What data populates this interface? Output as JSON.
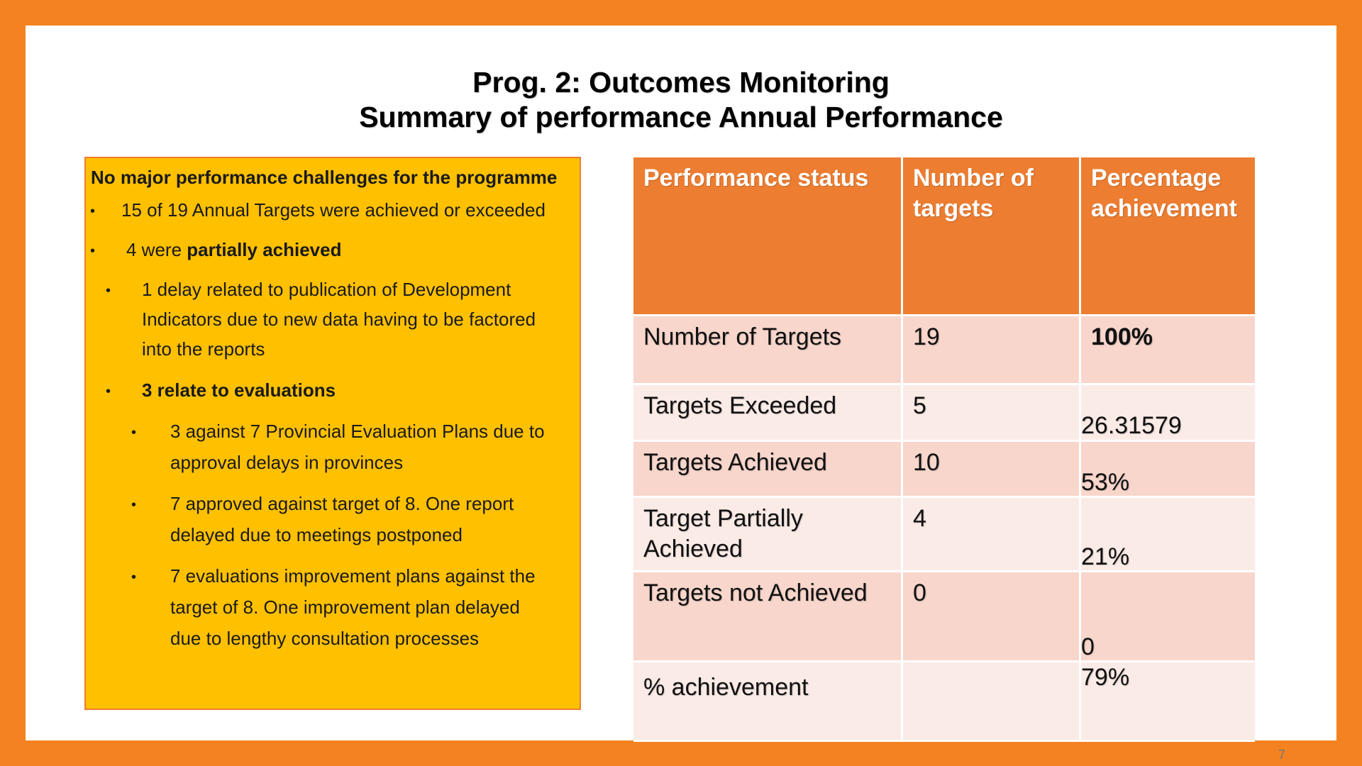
{
  "title": {
    "line1": "Prog. 2: Outcomes Monitoring",
    "line2": "Summary of performance Annual Performance"
  },
  "left_box": {
    "heading": "No major performance challenges for the programme",
    "bullets": [
      {
        "text": "15  of 19 Annual Targets were achieved or exceeded"
      },
      {
        "prefix": "4 were ",
        "bold": "partially achieved"
      },
      {
        "lines": [
          "1 delay related to publication of Development",
          "Indicators due to new data having to be factored",
          "into the reports"
        ]
      },
      {
        "bold": "3 relate to evaluations"
      },
      {
        "lines": [
          "3 against 7 Provincial Evaluation Plans due to",
          "approval delays in provinces"
        ]
      },
      {
        "lines": [
          "7 approved against target of 8. One report",
          "delayed due to meetings postponed"
        ]
      },
      {
        "lines": [
          "7 evaluations improvement plans against the",
          "target of 8. One improvement plan delayed",
          "due to lengthy consultation processes"
        ]
      }
    ],
    "bullet_char": "•"
  },
  "table": {
    "headers": [
      "Performance status",
      "Number of targets",
      "Percentage achievement"
    ],
    "rows": [
      {
        "status": "Number of Targets",
        "number": "19",
        "percentage": "100%"
      },
      {
        "status": "Targets Exceeded",
        "number": "5",
        "percentage": "26.31579"
      },
      {
        "status": "Targets Achieved",
        "number": "10",
        "percentage": "53%"
      },
      {
        "status": "Target Partially Achieved",
        "number": "4",
        "percentage": "21%"
      },
      {
        "status": "Targets not Achieved",
        "number": "0",
        "percentage": "0"
      },
      {
        "status": "% achievement",
        "number": "",
        "percentage": "79%"
      }
    ]
  },
  "page_number": "7",
  "colors": {
    "frame": "#f58220",
    "box": "#ffc000",
    "header": "#ed7d31",
    "row_dark": "#f8d6cb",
    "row_light": "#fbebe6"
  }
}
